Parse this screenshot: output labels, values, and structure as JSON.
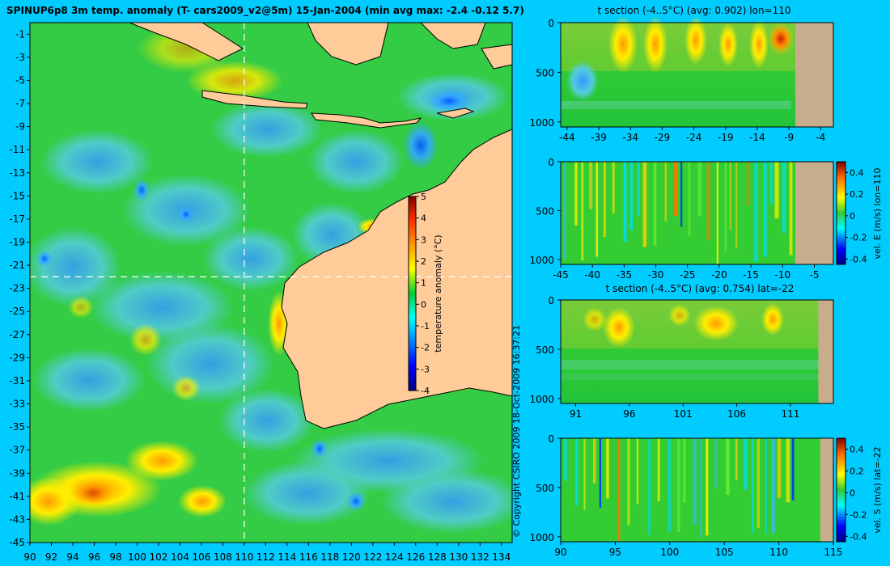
{
  "main_title": "SPINUP6p8 3m temp. anomaly (T- cars2009_v2@5m) 15-Jan-2004 (min avg max: -2.4 -0.12 5.7)",
  "copyright": "© Copyright CSIRO 2009  18-Oct-2009 16:37:21",
  "colors": {
    "background": "#00ccff",
    "land": "#ffcc99",
    "seafloor": "#c8ad8c",
    "map_border": "#000000",
    "crosshair": "#ffffff"
  },
  "chart_data": [
    {
      "id": "map",
      "type": "heatmap",
      "title": "",
      "lon_range": [
        90,
        135
      ],
      "lat_range": [
        -45,
        0
      ],
      "x_ticks": [
        "90",
        "92",
        "94",
        "96",
        "98",
        "100",
        "102",
        "104",
        "106",
        "108",
        "110",
        "112",
        "114",
        "116",
        "118",
        "120",
        "122",
        "124",
        "126",
        "128",
        "130",
        "132",
        "134"
      ],
      "y_ticks": [
        "-1",
        "-3",
        "-5",
        "-7",
        "-9",
        "-11",
        "-13",
        "-15",
        "-17",
        "-19",
        "-21",
        "-23",
        "-25",
        "-27",
        "-29",
        "-31",
        "-33",
        "-35",
        "-37",
        "-39",
        "-41",
        "-43",
        "-45"
      ],
      "crosshair": {
        "lon": 110,
        "lat": -22
      },
      "colorbar": {
        "label": "temperature anomaly (°C)",
        "range": [
          -4,
          5
        ],
        "ticks": [
          "5",
          "4",
          "3",
          "2",
          "1",
          "0",
          "-1",
          "-2",
          "-3",
          "-4"
        ],
        "position": "inset-right"
      }
    },
    {
      "id": "t-section-lon",
      "type": "heatmap",
      "title": "t section (-4..5°C) (avg: 0.902) lon=110",
      "x_range": [
        -45,
        -2
      ],
      "y_range": [
        0,
        1050
      ],
      "x_ticks": [
        "-44",
        "-39",
        "-34",
        "-29",
        "-24",
        "-19",
        "-14",
        "-9",
        "-4"
      ],
      "y_ticks": [
        "0",
        "500",
        "1000"
      ],
      "land_from": -8
    },
    {
      "id": "vel-e-section",
      "type": "heatmap",
      "title": "",
      "x_range": [
        -45,
        -2
      ],
      "y_range": [
        0,
        1050
      ],
      "x_ticks": [
        "-45",
        "-40",
        "-35",
        "-30",
        "-25",
        "-20",
        "-15",
        "-10",
        "-5"
      ],
      "y_ticks": [
        "0",
        "500",
        "1000"
      ],
      "land_from": -8,
      "colorbar": {
        "label": "vel. E (m/s) lon=110",
        "ticks": [
          "0.4",
          "0.2",
          "0",
          "-0.2",
          "-0.4"
        ],
        "range": [
          -0.45,
          0.5
        ]
      }
    },
    {
      "id": "t-section-lat",
      "type": "heatmap",
      "title": "t section (-4..5°C) (avg: 0.754) lat=-22",
      "x_range": [
        89.6,
        115
      ],
      "y_range": [
        0,
        1050
      ],
      "x_ticks": [
        "91",
        "96",
        "101",
        "106",
        "111"
      ],
      "y_ticks": [
        "0",
        "500",
        "1000"
      ],
      "land_from": 113.6
    },
    {
      "id": "vel-s-section",
      "type": "heatmap",
      "title": "",
      "x_range": [
        90,
        115
      ],
      "y_range": [
        0,
        1050
      ],
      "x_ticks": [
        "90",
        "95",
        "100",
        "105",
        "110",
        "115"
      ],
      "y_ticks": [
        "0",
        "500",
        "1000"
      ],
      "land_from": 113.8,
      "colorbar": {
        "label": "vel. S (m/s) lat=-22",
        "ticks": [
          "0.4",
          "0.2",
          "0",
          "-0.2",
          "-0.4"
        ],
        "range": [
          -0.45,
          0.5
        ]
      }
    }
  ]
}
